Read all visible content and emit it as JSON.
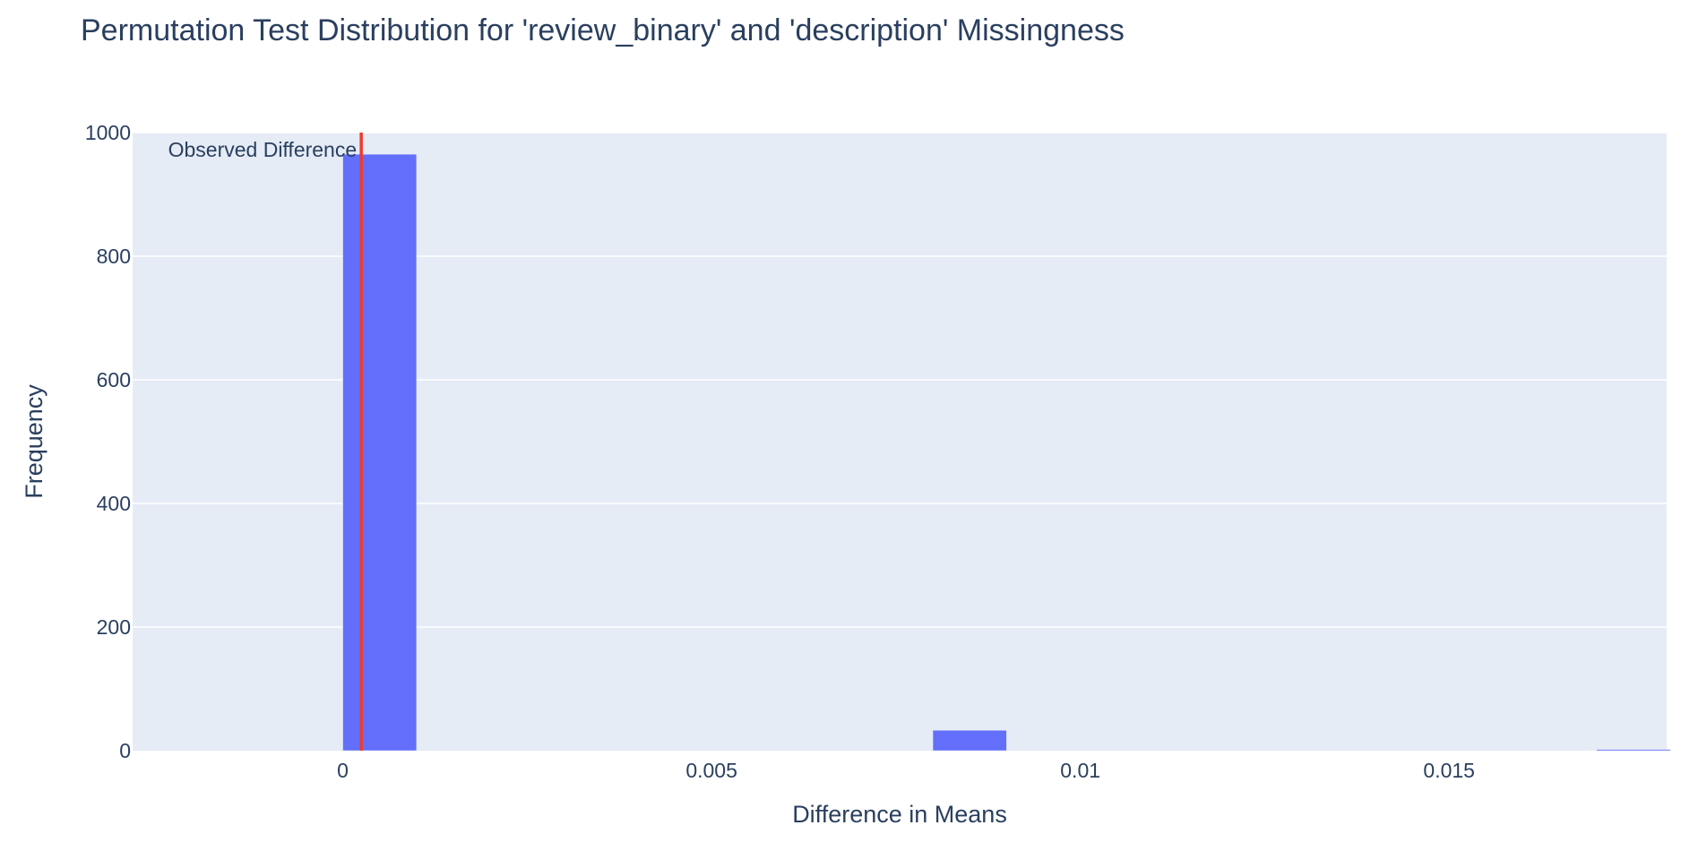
{
  "chart_data": {
    "type": "bar",
    "title": "Permutation Test Distribution for 'review_binary' and 'description' Missingness",
    "xlabel": "Difference in Means",
    "ylabel": "Frequency",
    "xlim": [
      -0.00285,
      0.01795
    ],
    "ylim": [
      0,
      1000
    ],
    "grid": true,
    "x_ticks": [
      0,
      0.005,
      0.01,
      0.015
    ],
    "x_tick_labels": [
      "0",
      "0.005",
      "0.01",
      "0.015"
    ],
    "y_ticks": [
      0,
      200,
      400,
      600,
      800,
      1000
    ],
    "y_tick_labels": [
      "0",
      "200",
      "400",
      "600",
      "800",
      "1000"
    ],
    "bin_width": 0.001,
    "bins": [
      {
        "x0": 0.0,
        "x1": 0.001,
        "count": 965
      },
      {
        "x0": 0.008,
        "x1": 0.009,
        "count": 33
      },
      {
        "x0": 0.017,
        "x1": 0.018,
        "count": 2
      }
    ],
    "observed_difference": 0.00025,
    "observed_label": "Observed Difference",
    "colors": {
      "bar": "#636efa",
      "observed_line": "#ef3b2c",
      "plot_bg": "#e5ecf6",
      "grid": "#ffffff",
      "text": "#2a3f5f"
    }
  }
}
